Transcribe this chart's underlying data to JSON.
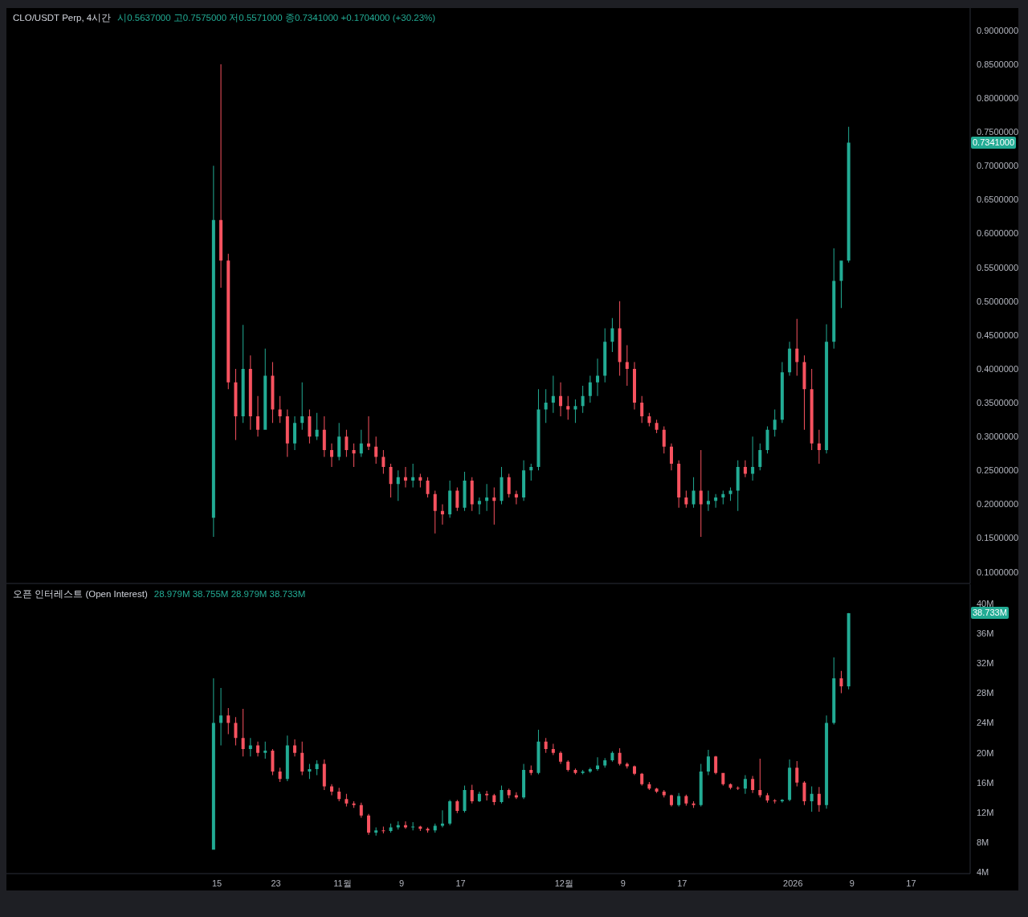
{
  "chart_data": [
    {
      "type": "candlestick",
      "title": "CLO/USDT Perp, 4시간",
      "subtitle": "시0.5637000 고0.7575000 저0.5571000 종0.7341000 +0.1704000 (+30.23%)",
      "x": [
        "2025-10-14T12:00",
        "2025-10-15T12:00",
        "2025-10-16T12:00",
        "2025-10-17T12:00",
        "2025-10-18T12:00",
        "2025-10-19T12:00",
        "2025-10-20T12:00",
        "2025-10-21T12:00",
        "2025-10-22T12:00",
        "2025-10-23T12:00",
        "2025-10-24T12:00",
        "2025-10-25T12:00",
        "2025-10-26T12:00",
        "2025-10-27T12:00",
        "2025-10-28T12:00",
        "2025-10-29T12:00",
        "2025-10-30T12:00",
        "2025-10-31T12:00",
        "2025-11-01T12:00",
        "2025-11-02T12:00",
        "2025-11-03T12:00",
        "2025-11-04T12:00",
        "2025-11-05T12:00",
        "2025-11-06T12:00",
        "2025-11-07T12:00",
        "2025-11-08T12:00",
        "2025-11-09T12:00",
        "2025-11-10T12:00",
        "2025-11-11T12:00",
        "2025-11-12T12:00",
        "2025-11-13T12:00",
        "2025-11-14T12:00",
        "2025-11-15T12:00",
        "2025-11-16T12:00",
        "2025-11-17T12:00",
        "2025-11-18T12:00",
        "2025-11-19T12:00",
        "2025-11-20T12:00",
        "2025-11-21T12:00",
        "2025-11-22T12:00",
        "2025-11-23T12:00",
        "2025-11-24T12:00",
        "2025-11-25T12:00",
        "2025-11-26T12:00",
        "2025-11-27T12:00",
        "2025-11-28T12:00",
        "2025-11-29T12:00",
        "2025-11-30T12:00",
        "2025-12-01T12:00",
        "2025-12-02T12:00",
        "2025-12-03T12:00",
        "2025-12-04T12:00",
        "2025-12-05T12:00",
        "2025-12-06T12:00",
        "2025-12-07T12:00",
        "2025-12-08T12:00",
        "2025-12-09T12:00",
        "2025-12-10T12:00",
        "2025-12-11T12:00",
        "2025-12-12T12:00",
        "2025-12-13T12:00",
        "2025-12-14T12:00",
        "2025-12-15T12:00",
        "2025-12-16T12:00",
        "2025-12-17T12:00",
        "2025-12-18T12:00",
        "2025-12-19T12:00",
        "2025-12-20T12:00",
        "2025-12-21T12:00",
        "2025-12-22T12:00",
        "2025-12-23T12:00",
        "2025-12-24T12:00",
        "2025-12-25T12:00",
        "2025-12-26T12:00",
        "2025-12-27T12:00",
        "2025-12-28T12:00",
        "2025-12-29T12:00",
        "2025-12-30T12:00",
        "2025-12-31T12:00",
        "2026-01-01T12:00",
        "2026-01-02T12:00",
        "2026-01-03T12:00",
        "2026-01-04T12:00",
        "2026-01-05T12:00",
        "2026-01-06T12:00",
        "2026-01-07T12:00",
        "2026-01-08T12:00"
      ],
      "ohlc": [
        [
          0.18,
          0.7,
          0.152,
          0.62
        ],
        [
          0.62,
          0.85,
          0.52,
          0.56
        ],
        [
          0.56,
          0.57,
          0.37,
          0.38
        ],
        [
          0.38,
          0.4,
          0.295,
          0.33
        ],
        [
          0.33,
          0.465,
          0.32,
          0.4
        ],
        [
          0.4,
          0.42,
          0.31,
          0.33
        ],
        [
          0.33,
          0.36,
          0.3,
          0.31
        ],
        [
          0.31,
          0.43,
          0.31,
          0.39
        ],
        [
          0.39,
          0.41,
          0.32,
          0.34
        ],
        [
          0.34,
          0.36,
          0.32,
          0.33
        ],
        [
          0.33,
          0.34,
          0.27,
          0.29
        ],
        [
          0.29,
          0.33,
          0.28,
          0.32
        ],
        [
          0.32,
          0.38,
          0.31,
          0.33
        ],
        [
          0.33,
          0.34,
          0.29,
          0.3
        ],
        [
          0.3,
          0.335,
          0.295,
          0.31
        ],
        [
          0.31,
          0.33,
          0.27,
          0.28
        ],
        [
          0.28,
          0.29,
          0.255,
          0.27
        ],
        [
          0.27,
          0.32,
          0.265,
          0.3
        ],
        [
          0.3,
          0.31,
          0.27,
          0.28
        ],
        [
          0.28,
          0.29,
          0.255,
          0.275
        ],
        [
          0.275,
          0.31,
          0.27,
          0.29
        ],
        [
          0.29,
          0.33,
          0.28,
          0.285
        ],
        [
          0.285,
          0.3,
          0.26,
          0.27
        ],
        [
          0.27,
          0.28,
          0.245,
          0.255
        ],
        [
          0.255,
          0.26,
          0.21,
          0.23
        ],
        [
          0.23,
          0.25,
          0.205,
          0.24
        ],
        [
          0.24,
          0.255,
          0.225,
          0.235
        ],
        [
          0.235,
          0.26,
          0.225,
          0.24
        ],
        [
          0.24,
          0.245,
          0.225,
          0.235
        ],
        [
          0.235,
          0.24,
          0.21,
          0.215
        ],
        [
          0.215,
          0.22,
          0.157,
          0.19
        ],
        [
          0.19,
          0.2,
          0.17,
          0.185
        ],
        [
          0.185,
          0.235,
          0.18,
          0.22
        ],
        [
          0.22,
          0.225,
          0.19,
          0.195
        ],
        [
          0.195,
          0.248,
          0.19,
          0.235
        ],
        [
          0.235,
          0.24,
          0.19,
          0.2
        ],
        [
          0.2,
          0.21,
          0.185,
          0.205
        ],
        [
          0.205,
          0.23,
          0.19,
          0.21
        ],
        [
          0.21,
          0.225,
          0.17,
          0.205
        ],
        [
          0.205,
          0.255,
          0.2,
          0.24
        ],
        [
          0.24,
          0.245,
          0.21,
          0.215
        ],
        [
          0.215,
          0.22,
          0.2,
          0.21
        ],
        [
          0.21,
          0.265,
          0.205,
          0.25
        ],
        [
          0.25,
          0.26,
          0.235,
          0.255
        ],
        [
          0.255,
          0.37,
          0.25,
          0.34
        ],
        [
          0.34,
          0.37,
          0.32,
          0.35
        ],
        [
          0.35,
          0.39,
          0.335,
          0.36
        ],
        [
          0.36,
          0.38,
          0.33,
          0.345
        ],
        [
          0.345,
          0.36,
          0.325,
          0.34
        ],
        [
          0.34,
          0.355,
          0.32,
          0.345
        ],
        [
          0.345,
          0.375,
          0.335,
          0.36
        ],
        [
          0.36,
          0.39,
          0.35,
          0.38
        ],
        [
          0.38,
          0.415,
          0.36,
          0.39
        ],
        [
          0.39,
          0.46,
          0.38,
          0.44
        ],
        [
          0.44,
          0.475,
          0.425,
          0.46
        ],
        [
          0.46,
          0.5,
          0.39,
          0.41
        ],
        [
          0.41,
          0.435,
          0.375,
          0.4
        ],
        [
          0.4,
          0.41,
          0.34,
          0.35
        ],
        [
          0.35,
          0.36,
          0.32,
          0.33
        ],
        [
          0.33,
          0.335,
          0.315,
          0.32
        ],
        [
          0.32,
          0.325,
          0.305,
          0.31
        ],
        [
          0.31,
          0.315,
          0.275,
          0.285
        ],
        [
          0.285,
          0.29,
          0.25,
          0.26
        ],
        [
          0.26,
          0.265,
          0.195,
          0.21
        ],
        [
          0.21,
          0.22,
          0.195,
          0.2
        ],
        [
          0.2,
          0.24,
          0.195,
          0.22
        ],
        [
          0.22,
          0.28,
          0.152,
          0.2
        ],
        [
          0.2,
          0.22,
          0.19,
          0.205
        ],
        [
          0.205,
          0.215,
          0.195,
          0.21
        ],
        [
          0.21,
          0.22,
          0.2,
          0.215
        ],
        [
          0.215,
          0.225,
          0.205,
          0.22
        ],
        [
          0.22,
          0.265,
          0.19,
          0.255
        ],
        [
          0.255,
          0.265,
          0.24,
          0.245
        ],
        [
          0.245,
          0.3,
          0.235,
          0.255
        ],
        [
          0.255,
          0.29,
          0.25,
          0.28
        ],
        [
          0.28,
          0.315,
          0.275,
          0.31
        ],
        [
          0.31,
          0.34,
          0.3,
          0.325
        ],
        [
          0.325,
          0.41,
          0.32,
          0.395
        ],
        [
          0.395,
          0.44,
          0.39,
          0.43
        ],
        [
          0.43,
          0.474,
          0.39,
          0.41
        ],
        [
          0.41,
          0.42,
          0.31,
          0.37
        ],
        [
          0.37,
          0.4,
          0.28,
          0.29
        ],
        [
          0.29,
          0.31,
          0.26,
          0.28
        ],
        [
          0.28,
          0.466,
          0.275,
          0.44
        ],
        [
          0.44,
          0.578,
          0.43,
          0.53
        ],
        [
          0.53,
          0.56,
          0.49,
          0.56
        ],
        [
          0.56,
          0.7575,
          0.5571,
          0.7341
        ]
      ],
      "colors": [
        "#22ab94",
        "#f7525f",
        "#f7525f",
        "#f7525f",
        "#22ab94",
        "#f7525f",
        "#f7525f",
        "#22ab94",
        "#f7525f",
        "#f7525f",
        "#f7525f",
        "#22ab94",
        "#22ab94",
        "#f7525f",
        "#22ab94",
        "#f7525f",
        "#f7525f",
        "#22ab94",
        "#f7525f",
        "#f7525f",
        "#22ab94",
        "#f7525f",
        "#f7525f",
        "#f7525f",
        "#f7525f",
        "#22ab94",
        "#f7525f",
        "#22ab94",
        "#f7525f",
        "#f7525f",
        "#f7525f",
        "#f7525f",
        "#22ab94",
        "#f7525f",
        "#22ab94",
        "#f7525f",
        "#22ab94",
        "#22ab94",
        "#f7525f",
        "#22ab94",
        "#f7525f",
        "#f7525f",
        "#22ab94",
        "#22ab94",
        "#22ab94",
        "#22ab94",
        "#22ab94",
        "#f7525f",
        "#f7525f",
        "#22ab94",
        "#22ab94",
        "#22ab94",
        "#22ab94",
        "#22ab94",
        "#22ab94",
        "#f7525f",
        "#f7525f",
        "#f7525f",
        "#f7525f",
        "#f7525f",
        "#f7525f",
        "#f7525f",
        "#f7525f",
        "#f7525f",
        "#f7525f",
        "#22ab94",
        "#f7525f",
        "#22ab94",
        "#22ab94",
        "#22ab94",
        "#22ab94",
        "#22ab94",
        "#f7525f",
        "#22ab94",
        "#22ab94",
        "#22ab94",
        "#22ab94",
        "#22ab94",
        "#22ab94",
        "#f7525f",
        "#f7525f",
        "#f7525f",
        "#f7525f",
        "#22ab94",
        "#22ab94",
        "#22ab94",
        "#22ab94"
      ],
      "xlim": [
        "2025-09-16T12:00",
        "2026-01-25T00:00"
      ],
      "ylim": [
        0.083,
        0.933
      ],
      "yticks": [
        {
          "value": 0.1,
          "label": "0.1000000"
        },
        {
          "value": 0.15,
          "label": "0.1500000"
        },
        {
          "value": 0.2,
          "label": "0.2000000"
        },
        {
          "value": 0.25,
          "label": "0.2500000"
        },
        {
          "value": 0.3,
          "label": "0.3000000"
        },
        {
          "value": 0.35,
          "label": "0.3500000"
        },
        {
          "value": 0.4,
          "label": "0.4000000"
        },
        {
          "value": 0.45,
          "label": "0.4500000"
        },
        {
          "value": 0.5,
          "label": "0.5000000"
        },
        {
          "value": 0.55,
          "label": "0.5500000"
        },
        {
          "value": 0.6,
          "label": "0.6000000"
        },
        {
          "value": 0.65,
          "label": "0.6500000"
        },
        {
          "value": 0.7,
          "label": "0.7000000"
        },
        {
          "value": 0.75,
          "label": "0.7500000"
        },
        {
          "value": 0.8,
          "label": "0.8000000"
        },
        {
          "value": 0.85,
          "label": "0.8500000"
        },
        {
          "value": 0.9,
          "label": "0.9000000"
        }
      ],
      "tick_labels": "y",
      "annotations": [
        "0.7341000"
      ]
    },
    {
      "type": "candlestick",
      "title": "오픈 인터레스트 (Open Interest)",
      "subtitle": "28.979M 38.755M 28.979M 38.733M",
      "x": [
        "2025-10-14T12:00",
        "2025-10-15T12:00",
        "2025-10-16T12:00",
        "2025-10-17T12:00",
        "2025-10-18T12:00",
        "2025-10-19T12:00",
        "2025-10-20T12:00",
        "2025-10-21T12:00",
        "2025-10-22T12:00",
        "2025-10-23T12:00",
        "2025-10-24T12:00",
        "2025-10-25T12:00",
        "2025-10-26T12:00",
        "2025-10-27T12:00",
        "2025-10-28T12:00",
        "2025-10-29T12:00",
        "2025-10-30T12:00",
        "2025-10-31T12:00",
        "2025-11-01T12:00",
        "2025-11-02T12:00",
        "2025-11-03T12:00",
        "2025-11-04T12:00",
        "2025-11-05T12:00",
        "2025-11-06T12:00",
        "2025-11-07T12:00",
        "2025-11-08T12:00",
        "2025-11-09T12:00",
        "2025-11-10T12:00",
        "2025-11-11T12:00",
        "2025-11-12T12:00",
        "2025-11-13T12:00",
        "2025-11-14T12:00",
        "2025-11-15T12:00",
        "2025-11-16T12:00",
        "2025-11-17T12:00",
        "2025-11-18T12:00",
        "2025-11-19T12:00",
        "2025-11-20T12:00",
        "2025-11-21T12:00",
        "2025-11-22T12:00",
        "2025-11-23T12:00",
        "2025-11-24T12:00",
        "2025-11-25T12:00",
        "2025-11-26T12:00",
        "2025-11-27T12:00",
        "2025-11-28T12:00",
        "2025-11-29T12:00",
        "2025-11-30T12:00",
        "2025-12-01T12:00",
        "2025-12-02T12:00",
        "2025-12-03T12:00",
        "2025-12-04T12:00",
        "2025-12-05T12:00",
        "2025-12-06T12:00",
        "2025-12-07T12:00",
        "2025-12-08T12:00",
        "2025-12-09T12:00",
        "2025-12-10T12:00",
        "2025-12-11T12:00",
        "2025-12-12T12:00",
        "2025-12-13T12:00",
        "2025-12-14T12:00",
        "2025-12-15T12:00",
        "2025-12-16T12:00",
        "2025-12-17T12:00",
        "2025-12-18T12:00",
        "2025-12-19T12:00",
        "2025-12-20T12:00",
        "2025-12-21T12:00",
        "2025-12-22T12:00",
        "2025-12-23T12:00",
        "2025-12-24T12:00",
        "2025-12-25T12:00",
        "2025-12-26T12:00",
        "2025-12-27T12:00",
        "2025-12-28T12:00",
        "2025-12-29T12:00",
        "2025-12-30T12:00",
        "2025-12-31T12:00",
        "2026-01-01T12:00",
        "2026-01-02T12:00",
        "2026-01-03T12:00",
        "2026-01-04T12:00",
        "2026-01-05T12:00",
        "2026-01-06T12:00",
        "2026-01-07T12:00",
        "2026-01-08T12:00"
      ],
      "ohlc": [
        [
          7.0,
          30,
          7.0,
          24
        ],
        [
          24,
          28.7,
          21,
          25
        ],
        [
          25,
          26,
          22.5,
          24
        ],
        [
          24,
          24.8,
          21,
          22
        ],
        [
          22,
          25.9,
          19.5,
          20.5
        ],
        [
          20.5,
          22,
          19.5,
          21
        ],
        [
          21,
          21.5,
          19.5,
          20
        ],
        [
          20,
          21.5,
          19.2,
          20.3
        ],
        [
          20.3,
          20.5,
          17,
          17.5
        ],
        [
          17.5,
          18,
          16.1,
          16.5
        ],
        [
          16.5,
          22.3,
          16.2,
          21
        ],
        [
          21,
          21.8,
          19.5,
          20
        ],
        [
          20,
          21.5,
          17,
          17.5
        ],
        [
          17.5,
          18.5,
          16.5,
          17.8
        ],
        [
          17.8,
          19,
          17,
          18.5
        ],
        [
          18.5,
          19.1,
          15,
          15.5
        ],
        [
          15.5,
          15.8,
          14.3,
          14.8
        ],
        [
          14.8,
          15.3,
          13.5,
          13.8
        ],
        [
          13.8,
          14.5,
          12.8,
          13.2
        ],
        [
          13.2,
          13.5,
          12.6,
          13
        ],
        [
          13,
          13.3,
          11.3,
          11.6
        ],
        [
          11.6,
          11.8,
          9,
          9.3
        ],
        [
          9.3,
          10,
          8.9,
          9.6
        ],
        [
          9.6,
          10.1,
          9.2,
          9.5
        ],
        [
          9.5,
          10.5,
          9.3,
          10
        ],
        [
          10,
          10.8,
          9.7,
          10.3
        ],
        [
          10.3,
          10.8,
          9.8,
          10
        ],
        [
          10,
          10.7,
          9.6,
          10.1
        ],
        [
          10.1,
          10.2,
          9.5,
          9.8
        ],
        [
          9.8,
          10,
          9.3,
          9.6
        ],
        [
          9.6,
          10.5,
          9.3,
          10.2
        ],
        [
          10.2,
          12.3,
          10,
          10.5
        ],
        [
          10.5,
          13.7,
          10.3,
          13.5
        ],
        [
          13.5,
          13.7,
          11.9,
          12.2
        ],
        [
          12.2,
          15.6,
          12,
          15
        ],
        [
          15,
          15.7,
          13.2,
          13.5
        ],
        [
          13.5,
          14.8,
          13.4,
          14.5
        ],
        [
          14.5,
          14.9,
          13.6,
          14.3
        ],
        [
          14.3,
          14.5,
          13,
          13.4
        ],
        [
          13.4,
          15.6,
          13.2,
          15
        ],
        [
          15,
          15.2,
          13.9,
          14.3
        ],
        [
          14.3,
          14.7,
          13.8,
          14
        ],
        [
          14,
          18.5,
          13.8,
          17.7
        ],
        [
          17.7,
          18.3,
          17,
          17.3
        ],
        [
          17.3,
          23.1,
          17.1,
          21.5
        ],
        [
          21.5,
          22,
          20,
          20.5
        ],
        [
          20.5,
          21.2,
          19.7,
          20
        ],
        [
          20,
          20.2,
          18.5,
          18.8
        ],
        [
          18.8,
          19,
          17.5,
          17.7
        ],
        [
          17.7,
          17.9,
          17.1,
          17.3
        ],
        [
          17.3,
          17.7,
          17.1,
          17.5
        ],
        [
          17.5,
          18,
          17.3,
          17.8
        ],
        [
          17.8,
          19.4,
          17.6,
          18.3
        ],
        [
          18.3,
          19.3,
          18,
          19
        ],
        [
          19,
          20.2,
          18.8,
          20
        ],
        [
          20,
          20.6,
          18.3,
          18.5
        ],
        [
          18.5,
          18.7,
          17.9,
          18.2
        ],
        [
          18.2,
          18.3,
          17,
          17.2
        ],
        [
          17.2,
          17.3,
          15.6,
          15.8
        ],
        [
          15.8,
          16.1,
          15,
          15.2
        ],
        [
          15.2,
          15.3,
          14.6,
          14.8
        ],
        [
          14.8,
          15,
          14,
          14.3
        ],
        [
          14.3,
          14.4,
          12.8,
          13
        ],
        [
          13,
          14.6,
          12.8,
          14.2
        ],
        [
          14.2,
          14.4,
          12.9,
          13.2
        ],
        [
          13.2,
          13.5,
          12.6,
          13
        ],
        [
          13,
          18.5,
          12.8,
          17.5
        ],
        [
          17.5,
          20.4,
          17,
          19.5
        ],
        [
          19.5,
          19.6,
          17.1,
          17.3
        ],
        [
          17.3,
          17.3,
          15.6,
          15.8
        ],
        [
          15.8,
          15.9,
          15.1,
          15.3
        ],
        [
          15.3,
          15.5,
          15,
          15.2
        ],
        [
          15.2,
          17,
          14.5,
          16.5
        ],
        [
          16.5,
          16.9,
          14.6,
          15
        ],
        [
          15,
          19.2,
          14,
          14.3
        ],
        [
          14.3,
          14.6,
          13.3,
          13.6
        ],
        [
          13.6,
          13.8,
          13.2,
          13.5
        ],
        [
          13.5,
          13.8,
          13.3,
          13.7
        ],
        [
          13.7,
          19.1,
          13.5,
          18
        ],
        [
          18,
          18.9,
          15.5,
          16
        ],
        [
          16,
          16.2,
          13,
          13.5
        ],
        [
          13.5,
          15.5,
          12.1,
          14.5
        ],
        [
          14.5,
          15.4,
          12.1,
          13
        ],
        [
          13,
          25,
          12.5,
          24
        ],
        [
          24,
          32.8,
          23.8,
          30
        ],
        [
          30,
          31,
          28,
          28.9
        ],
        [
          28.9,
          38.755,
          28.5,
          38.733
        ]
      ],
      "colors": [
        "#22ab94",
        "#22ab94",
        "#f7525f",
        "#f7525f",
        "#f7525f",
        "#22ab94",
        "#f7525f",
        "#22ab94",
        "#f7525f",
        "#f7525f",
        "#22ab94",
        "#f7525f",
        "#f7525f",
        "#22ab94",
        "#22ab94",
        "#f7525f",
        "#f7525f",
        "#f7525f",
        "#f7525f",
        "#f7525f",
        "#f7525f",
        "#f7525f",
        "#22ab94",
        "#f7525f",
        "#22ab94",
        "#22ab94",
        "#f7525f",
        "#22ab94",
        "#f7525f",
        "#f7525f",
        "#22ab94",
        "#22ab94",
        "#22ab94",
        "#f7525f",
        "#22ab94",
        "#f7525f",
        "#22ab94",
        "#f7525f",
        "#f7525f",
        "#22ab94",
        "#f7525f",
        "#f7525f",
        "#22ab94",
        "#f7525f",
        "#22ab94",
        "#f7525f",
        "#f7525f",
        "#f7525f",
        "#f7525f",
        "#f7525f",
        "#22ab94",
        "#22ab94",
        "#22ab94",
        "#22ab94",
        "#22ab94",
        "#f7525f",
        "#f7525f",
        "#f7525f",
        "#f7525f",
        "#f7525f",
        "#f7525f",
        "#f7525f",
        "#f7525f",
        "#22ab94",
        "#f7525f",
        "#f7525f",
        "#22ab94",
        "#22ab94",
        "#f7525f",
        "#f7525f",
        "#f7525f",
        "#f7525f",
        "#22ab94",
        "#f7525f",
        "#f7525f",
        "#f7525f",
        "#f7525f",
        "#22ab94",
        "#22ab94",
        "#f7525f",
        "#f7525f",
        "#22ab94",
        "#f7525f",
        "#22ab94",
        "#22ab94",
        "#f7525f",
        "#22ab94"
      ],
      "xlim": [
        "2025-09-16T12:00",
        "2026-01-25T00:00"
      ],
      "ylim": [
        3.8,
        42.6
      ],
      "xticks": [
        {
          "value": "2025-10-15",
          "label": "15"
        },
        {
          "value": "2025-10-23",
          "label": "23"
        },
        {
          "value": "2025-11-01",
          "label": "11월"
        },
        {
          "value": "2025-11-09",
          "label": "9"
        },
        {
          "value": "2025-11-17",
          "label": "17"
        },
        {
          "value": "2025-12-01",
          "label": "12월"
        },
        {
          "value": "2025-12-09",
          "label": "9"
        },
        {
          "value": "2025-12-17",
          "label": "17"
        },
        {
          "value": "2026-01-01",
          "label": "2026"
        },
        {
          "value": "2026-01-09",
          "label": "9"
        },
        {
          "value": "2026-01-17",
          "label": "17"
        }
      ],
      "yticks": [
        {
          "value": 4,
          "label": "4M"
        },
        {
          "value": 8,
          "label": "8M"
        },
        {
          "value": 12,
          "label": "12M"
        },
        {
          "value": 16,
          "label": "16M"
        },
        {
          "value": 20,
          "label": "20M"
        },
        {
          "value": 24,
          "label": "24M"
        },
        {
          "value": 28,
          "label": "28M"
        },
        {
          "value": 32,
          "label": "32M"
        },
        {
          "value": 36,
          "label": "36M"
        },
        {
          "value": 40,
          "label": "40M"
        }
      ],
      "annotations": [
        "38.733M"
      ]
    }
  ]
}
